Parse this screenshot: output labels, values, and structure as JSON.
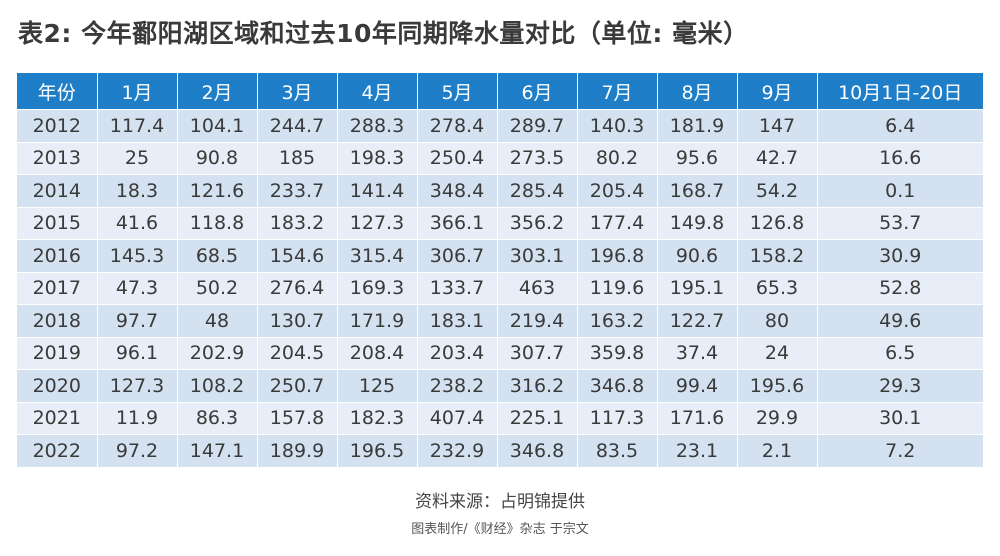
{
  "title": "表2: 今年鄱阳湖区域和过去10年同期降水量对比（单位: 毫米）",
  "table": {
    "headers": [
      "年份",
      "1月",
      "2月",
      "3月",
      "4月",
      "5月",
      "6月",
      "7月",
      "8月",
      "9月",
      "10月1日-20日"
    ],
    "rows": [
      [
        "2012",
        "117.4",
        "104.1",
        "244.7",
        "288.3",
        "278.4",
        "289.7",
        "140.3",
        "181.9",
        "147",
        "6.4"
      ],
      [
        "2013",
        "25",
        "90.8",
        "185",
        "198.3",
        "250.4",
        "273.5",
        "80.2",
        "95.6",
        "42.7",
        "16.6"
      ],
      [
        "2014",
        "18.3",
        "121.6",
        "233.7",
        "141.4",
        "348.4",
        "285.4",
        "205.4",
        "168.7",
        "54.2",
        "0.1"
      ],
      [
        "2015",
        "41.6",
        "118.8",
        "183.2",
        "127.3",
        "366.1",
        "356.2",
        "177.4",
        "149.8",
        "126.8",
        "53.7"
      ],
      [
        "2016",
        "145.3",
        "68.5",
        "154.6",
        "315.4",
        "306.7",
        "303.1",
        "196.8",
        "90.6",
        "158.2",
        "30.9"
      ],
      [
        "2017",
        "47.3",
        "50.2",
        "276.4",
        "169.3",
        "133.7",
        "463",
        "119.6",
        "195.1",
        "65.3",
        "52.8"
      ],
      [
        "2018",
        "97.7",
        "48",
        "130.7",
        "171.9",
        "183.1",
        "219.4",
        "163.2",
        "122.7",
        "80",
        "49.6"
      ],
      [
        "2019",
        "96.1",
        "202.9",
        "204.5",
        "208.4",
        "203.4",
        "307.7",
        "359.8",
        "37.4",
        "24",
        "6.5"
      ],
      [
        "2020",
        "127.3",
        "108.2",
        "250.7",
        "125",
        "238.2",
        "316.2",
        "346.8",
        "99.4",
        "195.6",
        "29.3"
      ],
      [
        "2021",
        "11.9",
        "86.3",
        "157.8",
        "182.3",
        "407.4",
        "225.1",
        "117.3",
        "171.6",
        "29.9",
        "30.1"
      ],
      [
        "2022",
        "97.2",
        "147.1",
        "189.9",
        "196.5",
        "232.9",
        "346.8",
        "83.5",
        "23.1",
        "2.1",
        "7.2"
      ]
    ]
  },
  "source": "资料来源：占明锦提供",
  "credit": "图表制作/《财经》杂志 于宗文",
  "colors": {
    "header_bg": "#1e7ec8",
    "row_odd_bg": "#d3e1f1",
    "row_even_bg": "#e7eef7"
  }
}
